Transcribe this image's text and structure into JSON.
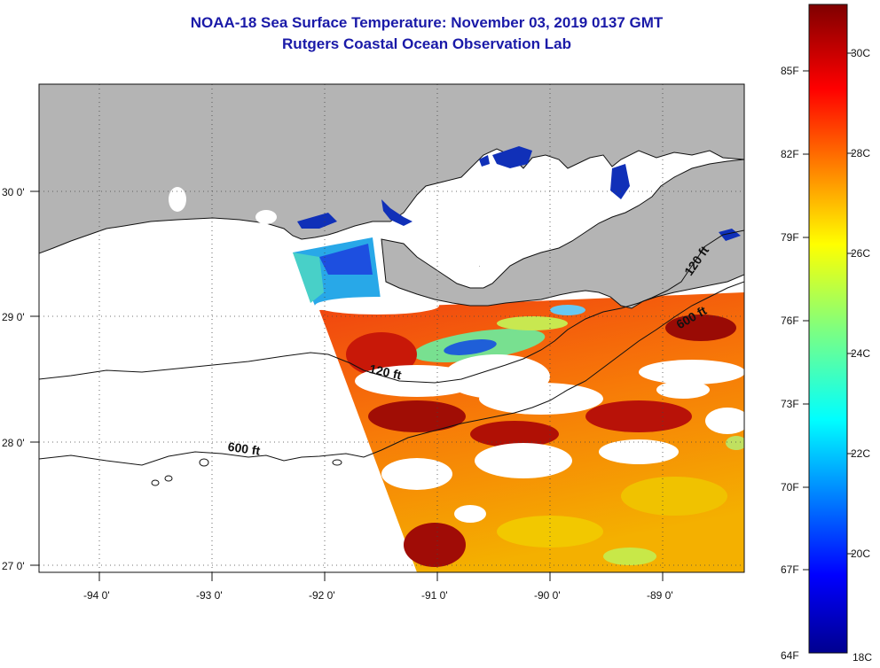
{
  "header": {
    "title": "NOAA-18 Sea Surface Temperature:  November 03, 2019 0137 GMT",
    "subtitle": "Rutgers Coastal Ocean Observation Lab"
  },
  "map": {
    "lon_range": [
      -94.5,
      -88.2
    ],
    "lat_range": [
      26.95,
      30.95
    ],
    "lon_ticks": [
      "-94 0'",
      "-93 0'",
      "-92 0'",
      "-91 0'",
      "-90 0'",
      "-89 0'"
    ],
    "lat_ticks": [
      "27 0'",
      "28 0'",
      "29 0'",
      "30 0'"
    ],
    "contour_labels": [
      {
        "text": "120 ft"
      },
      {
        "text": "600 ft"
      },
      {
        "text": "120 ft"
      },
      {
        "text": "600 ft"
      }
    ],
    "colors": {
      "land": "#b4b4b4",
      "no_data": "#ffffff",
      "title": "#1a1aa8"
    }
  },
  "colorbar": {
    "celsius_labels": [
      "30C",
      "28C",
      "26C",
      "24C",
      "22C",
      "20C",
      "18C"
    ],
    "fahrenheit_labels": [
      "85F",
      "82F",
      "79F",
      "76F",
      "73F",
      "70F",
      "67F",
      "64F"
    ],
    "range_c": [
      18,
      31
    ],
    "colormap": "jet"
  }
}
